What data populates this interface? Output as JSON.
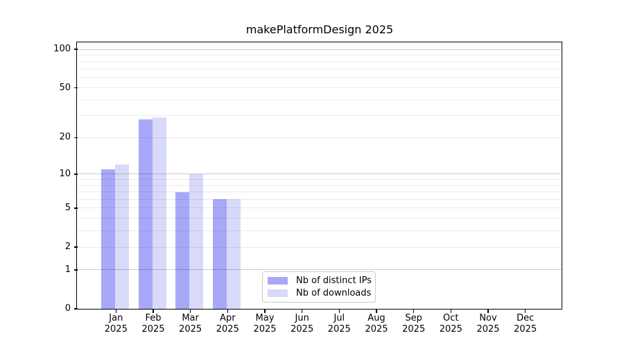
{
  "chart_data": {
    "type": "bar",
    "title": "makePlatformDesign 2025",
    "categories": [
      "Jan",
      "Feb",
      "Mar",
      "Apr",
      "May",
      "Jun",
      "Jul",
      "Aug",
      "Sep",
      "Oct",
      "Nov",
      "Dec"
    ],
    "year_label": "2025",
    "series": [
      {
        "name": "Nb of distinct IPs",
        "color": "#a8a8f8",
        "values": [
          11,
          28,
          7,
          6,
          0,
          0,
          0,
          0,
          0,
          0,
          0,
          0
        ]
      },
      {
        "name": "Nb of downloads",
        "color": "#d9d9f9",
        "values": [
          12,
          29,
          10,
          6,
          0,
          0,
          0,
          0,
          0,
          0,
          0,
          0
        ]
      }
    ],
    "yscale": "log1p",
    "ylim": [
      0,
      112
    ],
    "yticks": {
      "values": [
        0,
        1,
        2,
        5,
        10,
        20,
        50,
        100
      ],
      "labels": [
        "0",
        "1",
        "2",
        "5",
        "10",
        "20",
        "50",
        "100"
      ]
    },
    "grid": {
      "on": true,
      "minor_values": [
        2,
        3,
        4,
        5,
        6,
        7,
        8,
        9,
        20,
        30,
        40,
        50,
        60,
        70,
        80,
        90
      ],
      "major_values": [
        1,
        10,
        100
      ]
    },
    "legend": {
      "location": "lower center"
    }
  }
}
